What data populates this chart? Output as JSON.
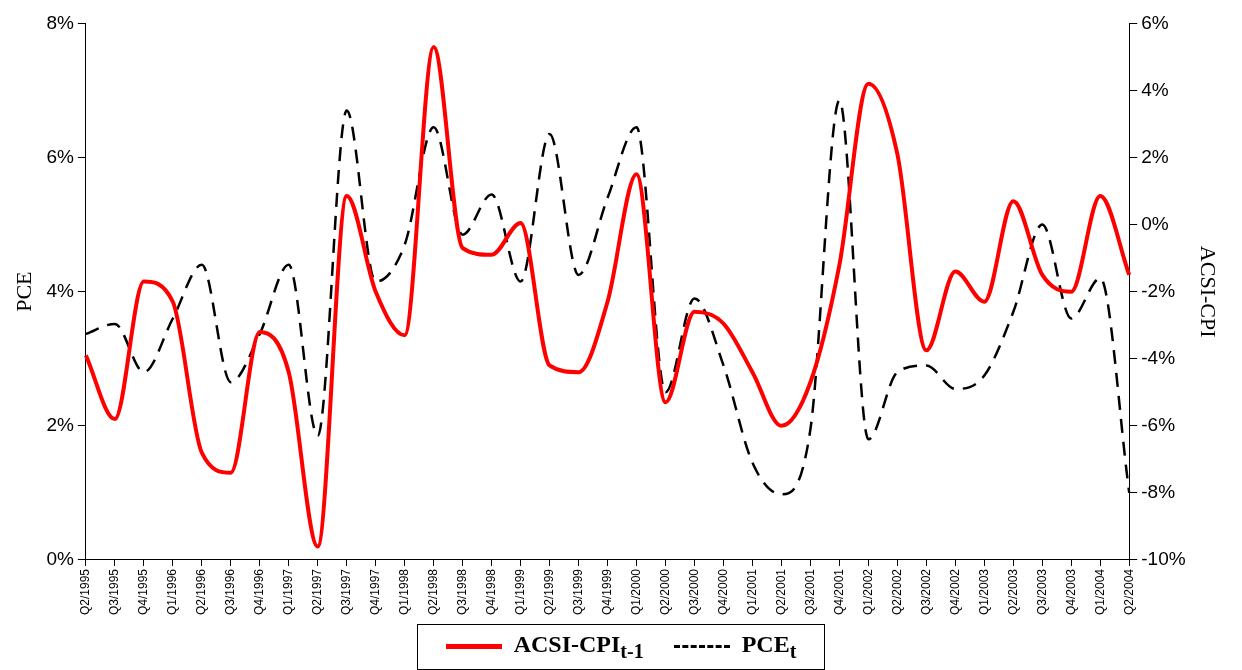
{
  "chart_data": {
    "type": "line",
    "xlabel": null,
    "ylabel": "PCE",
    "y2label": "ACSI-CPI",
    "categories": [
      "Q2/1995",
      "Q3/1995",
      "Q4/1995",
      "Q1/1996",
      "Q2/1996",
      "Q3/1996",
      "Q4/1996",
      "Q1/1997",
      "Q2/1997",
      "Q3/1997",
      "Q4/1997",
      "Q1/1998",
      "Q2/1998",
      "Q3/1998",
      "Q4/1998",
      "Q1/1999",
      "Q2/1999",
      "Q3/1999",
      "Q4/1999",
      "Q1/2000",
      "Q2/2000",
      "Q3/2000",
      "Q4/2000",
      "Q1/2001",
      "Q2/2001",
      "Q3/2001",
      "Q4/2001",
      "Q1/2002",
      "Q2/2002",
      "Q3/2002",
      "Q4/2002",
      "Q1/2003",
      "Q2/2003",
      "Q3/2003",
      "Q4/2003",
      "Q1/2004",
      "Q2/2004"
    ],
    "series": [
      {
        "name": "ACSI-CPI$_{t-1}$",
        "color": "#ff0000",
        "axis": "y2",
        "line_style": "solid",
        "values": [
          -3.9,
          -5.8,
          -1.7,
          -2.3,
          -6.8,
          -7.4,
          -3.2,
          -4.4,
          -9.6,
          0.85,
          -2.0,
          -3.3,
          5.3,
          -0.7,
          -0.9,
          0.05,
          -4.2,
          -4.4,
          -2.3,
          1.5,
          -5.3,
          -2.6,
          -2.95,
          -4.4,
          -6.0,
          -4.7,
          -1.2,
          4.2,
          2.1,
          -3.75,
          -1.4,
          -2.3,
          0.7,
          -1.5,
          -2.0,
          0.85,
          -1.5
        ]
      },
      {
        "name": "PCE$_{t}$",
        "color": "#000000",
        "axis": "y",
        "line_style": "dashed",
        "values": [
          3.37,
          3.52,
          2.8,
          3.6,
          4.4,
          2.65,
          3.37,
          4.4,
          1.85,
          6.7,
          4.15,
          4.7,
          6.45,
          4.85,
          5.45,
          4.15,
          6.35,
          4.25,
          5.4,
          6.45,
          2.5,
          3.9,
          2.9,
          1.45,
          0.98,
          1.95,
          6.85,
          1.8,
          2.8,
          2.9,
          2.55,
          2.75,
          3.7,
          5.0,
          3.6,
          4.2,
          1.0
        ]
      }
    ],
    "ylim": [
      0,
      8
    ],
    "yticks": [
      {
        "value": 0,
        "label": "0%"
      },
      {
        "value": 2,
        "label": "2%"
      },
      {
        "value": 4,
        "label": "4%"
      },
      {
        "value": 6,
        "label": "6%"
      },
      {
        "value": 8,
        "label": "8%"
      }
    ],
    "y2lim": [
      -10,
      6
    ],
    "y2ticks": [
      {
        "value": -10,
        "label": "-10%"
      },
      {
        "value": -8,
        "label": "-8%"
      },
      {
        "value": -6,
        "label": "-6%"
      },
      {
        "value": -4,
        "label": "-4%"
      },
      {
        "value": -2,
        "label": "-2%"
      },
      {
        "value": 0,
        "label": "0%"
      },
      {
        "value": 2,
        "label": "2%"
      },
      {
        "value": 4,
        "label": "4%"
      },
      {
        "value": 6,
        "label": "6%"
      }
    ],
    "grid": false,
    "legend": "bottom",
    "marker": "none"
  }
}
